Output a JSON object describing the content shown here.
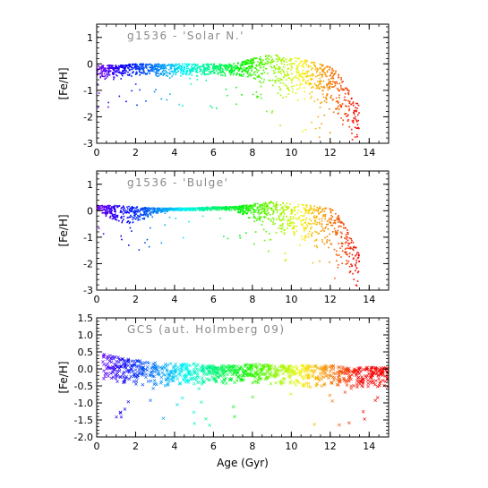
{
  "chart_data": [
    {
      "type": "scatter",
      "title": "g1536 - 'Solar N.'",
      "xlabel": "",
      "ylabel": "[Fe/H]",
      "xlim": [
        0,
        15
      ],
      "ylim": [
        -3.0,
        1.5
      ],
      "xticks": [
        "0",
        "2",
        "4",
        "6",
        "8",
        "10",
        "12",
        "14"
      ],
      "yticks": [
        "1",
        "0",
        "-1",
        "-2",
        "-3"
      ],
      "color_by": "age (violet → blue → cyan → green → yellow → orange → red)",
      "trend": {
        "x": [
          0,
          1,
          2,
          3,
          4,
          5,
          6,
          7,
          8,
          8.5,
          9,
          9.5,
          10,
          10.5,
          11,
          11.5,
          12,
          12.5,
          13,
          13.5
        ],
        "upper": [
          -0.05,
          -0.05,
          0.0,
          0.0,
          0.0,
          0.0,
          0.0,
          0.0,
          0.2,
          0.3,
          0.35,
          0.3,
          0.25,
          0.2,
          0.1,
          0.0,
          -0.1,
          -0.4,
          -1.0,
          -1.6
        ],
        "lower": [
          -0.6,
          -0.55,
          -0.45,
          -0.5,
          -0.5,
          -0.5,
          -0.5,
          -0.5,
          -0.6,
          -0.7,
          -0.9,
          -1.3,
          -1.4,
          -1.5,
          -1.6,
          -1.7,
          -1.9,
          -2.3,
          -2.8,
          -3.0
        ]
      }
    },
    {
      "type": "scatter",
      "title": "g1536 - 'Bulge'",
      "xlabel": "",
      "ylabel": "[Fe/H]",
      "xlim": [
        0,
        15
      ],
      "ylim": [
        -3.0,
        1.5
      ],
      "xticks": [
        "0",
        "2",
        "4",
        "6",
        "8",
        "10",
        "12",
        "14"
      ],
      "yticks": [
        "1",
        "0",
        "-1",
        "-2",
        "-3"
      ],
      "color_by": "age (violet → blue → cyan → green → yellow → orange → red)",
      "trend": {
        "x": [
          0,
          1,
          2,
          3,
          4,
          5,
          6,
          7,
          8,
          8.5,
          9,
          9.5,
          10,
          10.5,
          11,
          11.5,
          12,
          12.5,
          13,
          13.5
        ],
        "upper": [
          0.2,
          0.2,
          0.15,
          0.1,
          0.1,
          0.1,
          0.15,
          0.15,
          0.25,
          0.3,
          0.35,
          0.3,
          0.3,
          0.25,
          0.2,
          0.15,
          0.1,
          -0.2,
          -0.9,
          -1.6
        ],
        "lower": [
          0.0,
          -0.5,
          -0.5,
          -0.1,
          0.0,
          0.0,
          0.0,
          0.0,
          -0.4,
          -0.5,
          -0.6,
          -0.9,
          -1.1,
          -1.2,
          -1.3,
          -1.5,
          -1.8,
          -2.3,
          -2.8,
          -3.0
        ]
      }
    },
    {
      "type": "scatter",
      "title": "GCS (aut. Holmberg 09)",
      "xlabel": "Age (Gyr)",
      "ylabel": "[Fe/H]",
      "xlim": [
        0,
        15
      ],
      "ylim": [
        -2.0,
        1.5
      ],
      "xticks": [
        "0",
        "2",
        "4",
        "6",
        "8",
        "10",
        "12",
        "14"
      ],
      "yticks": [
        "1.5",
        "1.0",
        "0.5",
        "0.0",
        "-0.5",
        "-1.0",
        "-1.5",
        "-2.0"
      ],
      "color_by": "age (violet → blue → cyan → green → yellow → orange → red)",
      "trend": {
        "x": [
          0.3,
          1,
          2,
          3,
          4,
          5,
          6,
          7,
          8,
          9,
          10,
          11,
          12,
          13,
          14,
          15
        ],
        "upper": [
          0.45,
          0.35,
          0.25,
          0.2,
          0.15,
          0.15,
          0.1,
          0.1,
          0.15,
          0.1,
          0.1,
          0.1,
          0.1,
          0.05,
          0.05,
          0.05
        ],
        "lower": [
          -0.35,
          -0.5,
          -0.55,
          -0.55,
          -0.5,
          -0.5,
          -0.45,
          -0.45,
          -0.5,
          -0.5,
          -0.5,
          -0.55,
          -0.55,
          -0.6,
          -0.6,
          -0.6
        ]
      }
    }
  ]
}
